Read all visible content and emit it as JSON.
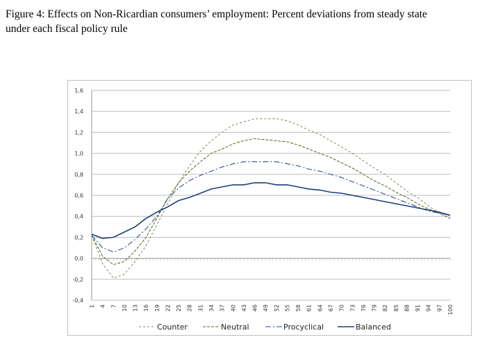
{
  "title_line1": "Figure 4: Effects on Non-Ricardian consumers’ employment: Percent deviations from steady state",
  "title_line2": "under each fiscal policy rule",
  "chart_data": {
    "type": "line",
    "title": "",
    "xlabel": "",
    "ylabel": "",
    "ylim": [
      -0.4,
      1.6
    ],
    "yticks": [
      "1,6",
      "1,4",
      "1,2",
      "1,0",
      "0,8",
      "0,6",
      "0,4",
      "0,2",
      "0,0",
      "-0,2",
      "-0,4"
    ],
    "ytick_values": [
      1.6,
      1.4,
      1.2,
      1.0,
      0.8,
      0.6,
      0.4,
      0.2,
      0.0,
      -0.2,
      -0.4
    ],
    "xlim": [
      1,
      100
    ],
    "grid": "horizontal",
    "legend_placement": "bottom",
    "x": [
      1,
      4,
      7,
      10,
      13,
      16,
      19,
      22,
      25,
      28,
      31,
      34,
      37,
      40,
      43,
      46,
      49,
      52,
      55,
      58,
      61,
      64,
      67,
      70,
      73,
      76,
      79,
      82,
      85,
      88,
      91,
      94,
      97,
      100
    ],
    "series": [
      {
        "name": "Counter",
        "color": "#7f8f5a",
        "dash": "3,3",
        "values": [
          0.22,
          -0.05,
          -0.19,
          -0.15,
          -0.03,
          0.12,
          0.32,
          0.52,
          0.72,
          0.88,
          1.02,
          1.12,
          1.2,
          1.27,
          1.3,
          1.33,
          1.33,
          1.33,
          1.31,
          1.27,
          1.22,
          1.18,
          1.12,
          1.06,
          1.0,
          0.93,
          0.86,
          0.8,
          0.72,
          0.64,
          0.58,
          0.5,
          0.43,
          0.38
        ]
      },
      {
        "name": "Neutral",
        "color": "#5e6b2a",
        "dash": "4,2",
        "values": [
          0.22,
          0.02,
          -0.06,
          -0.03,
          0.07,
          0.2,
          0.38,
          0.57,
          0.72,
          0.83,
          0.92,
          1.0,
          1.04,
          1.09,
          1.12,
          1.14,
          1.13,
          1.12,
          1.11,
          1.08,
          1.04,
          1.0,
          0.96,
          0.91,
          0.86,
          0.8,
          0.74,
          0.69,
          0.63,
          0.58,
          0.52,
          0.47,
          0.43,
          0.38
        ]
      },
      {
        "name": "Procyclical",
        "color": "#2f4f8f",
        "dash": "8,3,2,3",
        "values": [
          0.22,
          0.1,
          0.06,
          0.1,
          0.18,
          0.28,
          0.4,
          0.57,
          0.67,
          0.74,
          0.79,
          0.83,
          0.87,
          0.9,
          0.92,
          0.92,
          0.92,
          0.92,
          0.9,
          0.88,
          0.85,
          0.83,
          0.8,
          0.77,
          0.73,
          0.69,
          0.65,
          0.61,
          0.57,
          0.53,
          0.49,
          0.45,
          0.43,
          0.41
        ]
      },
      {
        "name": "Balanced",
        "color": "#1f3d7a",
        "dash": "",
        "values": [
          0.23,
          0.19,
          0.2,
          0.25,
          0.3,
          0.38,
          0.44,
          0.49,
          0.55,
          0.58,
          0.62,
          0.66,
          0.68,
          0.7,
          0.7,
          0.72,
          0.72,
          0.7,
          0.7,
          0.68,
          0.66,
          0.65,
          0.63,
          0.62,
          0.6,
          0.58,
          0.56,
          0.54,
          0.52,
          0.5,
          0.48,
          0.46,
          0.44,
          0.41
        ]
      }
    ]
  }
}
